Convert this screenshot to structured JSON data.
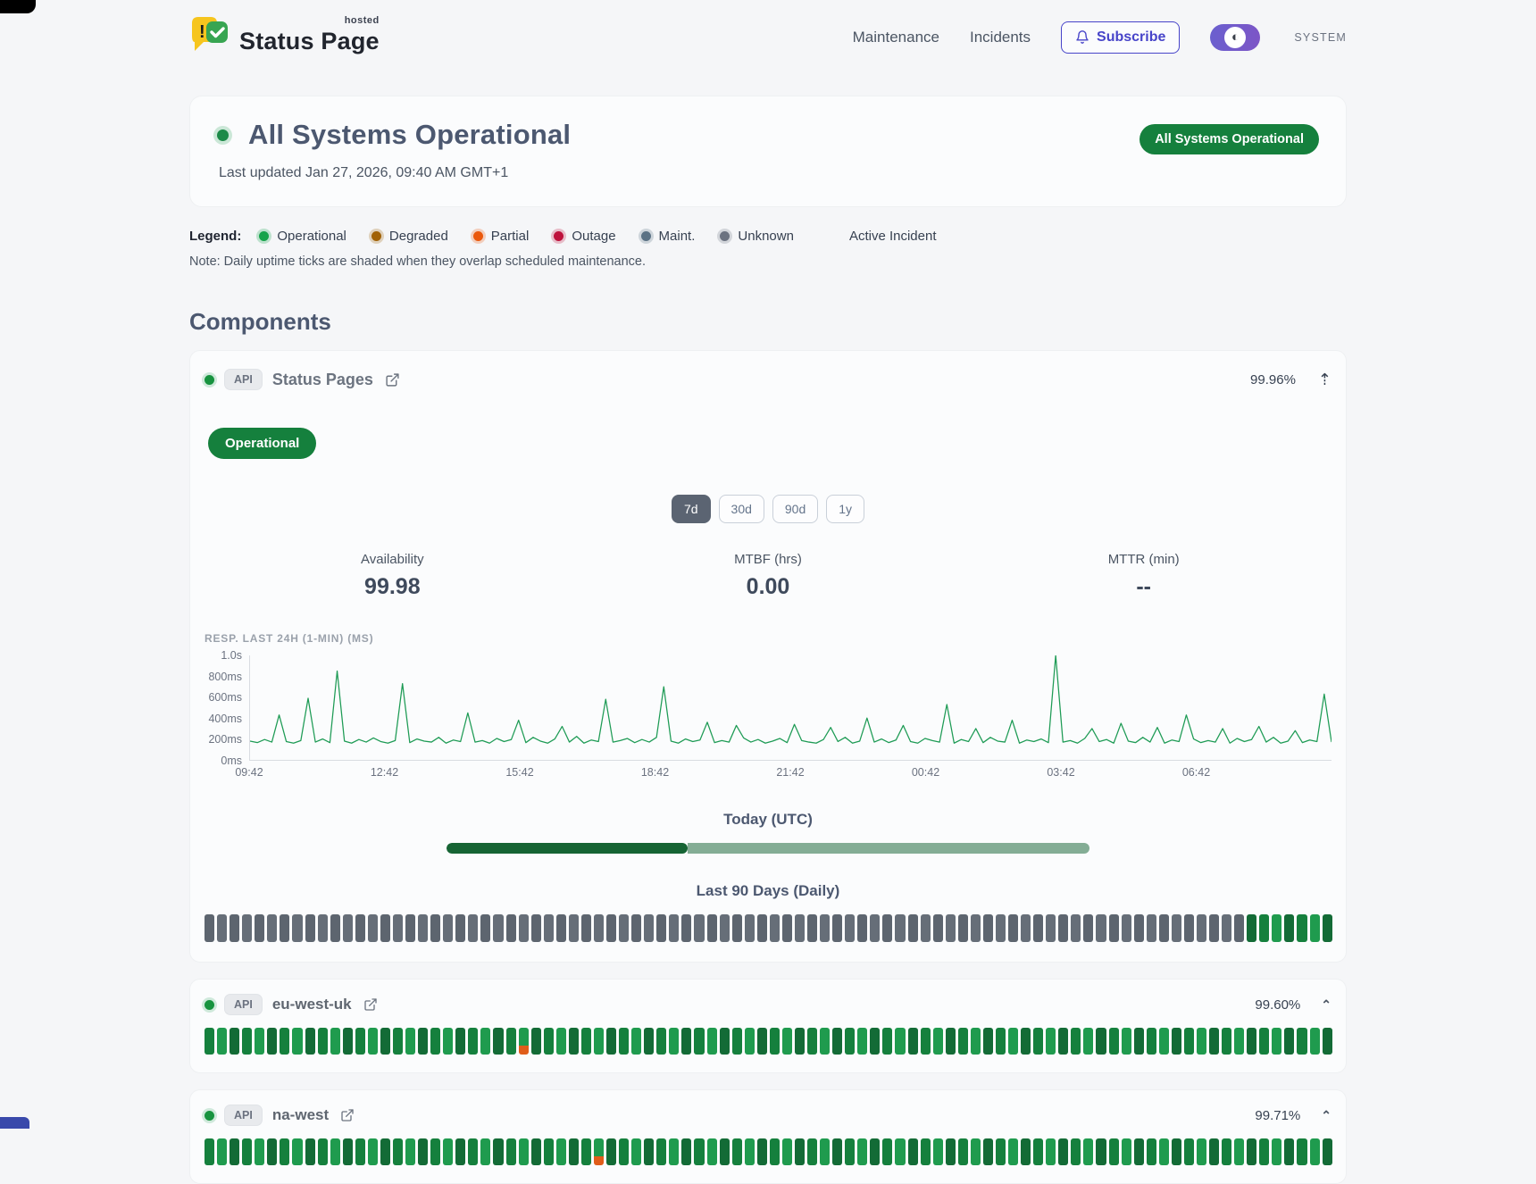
{
  "header": {
    "brand": {
      "title": "Status Page",
      "superscript": "hosted"
    },
    "nav": [
      {
        "label": "Maintenance"
      },
      {
        "label": "Incidents"
      }
    ],
    "subscribe_label": "Subscribe",
    "theme_toggle_glyph": "◐",
    "theme_label": "SYSTEM"
  },
  "hero": {
    "status_title": "All Systems Operational",
    "last_updated": "Last updated Jan 27, 2026, 09:40 AM GMT+1",
    "badge": "All Systems Operational"
  },
  "legend": {
    "label": "Legend:",
    "items": [
      {
        "label": "Operational",
        "color": "#16a34a",
        "ring": "rgba(22,163,74,.25)"
      },
      {
        "label": "Degraded",
        "color": "#a16207",
        "ring": "rgba(161,98,7,.25)"
      },
      {
        "label": "Partial",
        "color": "#ea580c",
        "ring": "rgba(234,88,12,.25)"
      },
      {
        "label": "Outage",
        "color": "#be123c",
        "ring": "rgba(190,18,60,.25)"
      },
      {
        "label": "Maint.",
        "color": "#5b7285",
        "ring": "rgba(91,114,133,.25)"
      },
      {
        "label": "Unknown",
        "color": "#6b7280",
        "ring": "rgba(107,114,128,.25)"
      }
    ],
    "active_incident_label": "Active Incident",
    "note": "Note: Daily uptime ticks are shaded when they overlap scheduled maintenance."
  },
  "components_section": {
    "title": "Components"
  },
  "component": {
    "api_badge": "API",
    "name": "Status Pages",
    "uptime": "99.96%",
    "collapse_glyph": "⇡",
    "status_badge": "Operational",
    "ranges": [
      "7d",
      "30d",
      "90d",
      "1y"
    ],
    "selected_range": "7d",
    "metrics": [
      {
        "label": "Availability",
        "value": "99.98"
      },
      {
        "label": "MTBF (hrs)",
        "value": "0.00"
      },
      {
        "label": "MTTR (min)",
        "value": "--"
      }
    ],
    "today_label": "Today (UTC)",
    "today_progress_pct": 37.5,
    "today_colors": {
      "done": "#166434",
      "rest": "#84ad95"
    },
    "ninety_label": "Last 90 Days (Daily)",
    "ninety_days": {
      "runs": [
        [
          "unknown",
          83
        ],
        [
          "operational",
          7
        ]
      ]
    }
  },
  "rows": [
    {
      "api_badge": "API",
      "name": "eu-west-uk",
      "uptime": "99.60%",
      "chevron_glyph": "⌃",
      "days": {
        "runs": [
          [
            "operational",
            25
          ],
          [
            "partial",
            1
          ],
          [
            "operational",
            64
          ]
        ]
      }
    },
    {
      "api_badge": "API",
      "name": "na-west",
      "uptime": "99.71%",
      "chevron_glyph": "⌃",
      "days": {
        "runs": [
          [
            "operational",
            31
          ],
          [
            "partial",
            1
          ],
          [
            "operational",
            58
          ]
        ]
      }
    }
  ],
  "tick_colors": {
    "operational": [
      "#15803d",
      "#1f9b4e",
      "#136b36"
    ],
    "unknown": [
      "#5d656f",
      "#666e78"
    ],
    "partial_accent": "#e05d1a"
  },
  "chart_data": {
    "type": "line",
    "title": "RESP. LAST 24H (1-MIN) (MS)",
    "line_color": "#1e9b55",
    "x_ticks": [
      "09:42",
      "12:42",
      "15:42",
      "18:42",
      "21:42",
      "00:42",
      "03:42",
      "06:42"
    ],
    "y_ticks": [
      "1.0s",
      "800ms",
      "600ms",
      "400ms",
      "200ms",
      "0ms"
    ],
    "ylim": [
      0,
      1000
    ],
    "unit": "ms",
    "values": [
      180,
      165,
      195,
      170,
      430,
      175,
      160,
      185,
      590,
      170,
      200,
      165,
      850,
      180,
      160,
      195,
      170,
      210,
      175,
      160,
      185,
      730,
      165,
      200,
      180,
      170,
      215,
      160,
      190,
      175,
      450,
      170,
      185,
      160,
      205,
      175,
      195,
      380,
      165,
      215,
      180,
      160,
      200,
      320,
      170,
      225,
      160,
      190,
      175,
      580,
      170,
      185,
      205,
      165,
      195,
      170,
      215,
      700,
      180,
      160,
      200,
      175,
      190,
      360,
      165,
      185,
      170,
      330,
      210,
      170,
      195,
      160,
      180,
      205,
      165,
      340,
      185,
      170,
      160,
      195,
      310,
      175,
      215,
      160,
      180,
      400,
      170,
      200,
      165,
      190,
      330,
      175,
      160,
      205,
      185,
      170,
      530,
      160,
      195,
      175,
      300,
      165,
      215,
      180,
      170,
      380,
      160,
      190,
      175,
      200,
      165,
      1000,
      170,
      185,
      160,
      205,
      300,
      175,
      195,
      160,
      350,
      180,
      165,
      215,
      170,
      310,
      160,
      190,
      175,
      430,
      200,
      165,
      185,
      170,
      300,
      160,
      205,
      175,
      195,
      320,
      170,
      215,
      160,
      180,
      280,
      165,
      190,
      175,
      630,
      170
    ]
  }
}
